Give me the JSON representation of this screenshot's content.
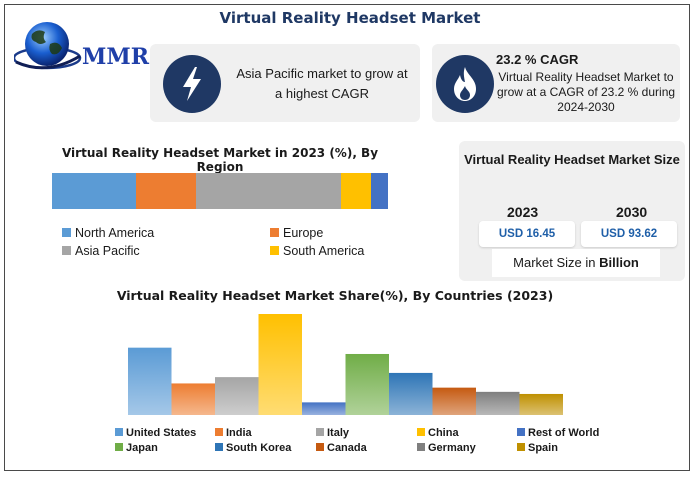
{
  "title": "Virtual Reality Headset Market",
  "logo": {
    "text": "MMR"
  },
  "card_ap": {
    "icon": "lightning-icon",
    "text": "Asia Pacific market to grow at a highest CAGR"
  },
  "card_cagr": {
    "icon": "flame-icon",
    "heading": "23.2 % CAGR",
    "text": "Virtual Reality Headset Market to grow at a CAGR of 23.2 % during 2024-2030"
  },
  "market_size": {
    "title": "Virtual Reality Headset Market Size",
    "year_a": "2023",
    "value_a": "USD 16.45",
    "year_b": "2030",
    "value_b": "USD 93.62",
    "footer_prefix": "Market Size in ",
    "footer_bold": "Billion"
  },
  "colors": {
    "title": "#1f3864",
    "accent_dark": "#1f3864",
    "value_text": "#1f5fa8"
  },
  "chart_data": [
    {
      "type": "bar",
      "orientation": "horizontal-stacked",
      "title": "Virtual Reality Headset Market in 2023 (%), By Region",
      "series": [
        {
          "name": "North America",
          "value": 25,
          "color": "#5b9bd5"
        },
        {
          "name": "Europe",
          "value": 18,
          "color": "#ed7d31"
        },
        {
          "name": "Asia Pacific",
          "value": 43,
          "color": "#a5a5a5"
        },
        {
          "name": "South America",
          "value": 9,
          "color": "#ffc000"
        },
        {
          "name": "",
          "value": 5,
          "color": "#4472c4"
        }
      ],
      "legend": [
        "North America",
        "Europe",
        "Asia Pacific",
        "South America"
      ],
      "legend_placement": "bottom"
    },
    {
      "type": "bar",
      "title": "Virtual Reality Headset Market Share(%), By Countries (2023)",
      "categories": [
        "United States",
        "India",
        "Italy",
        "China",
        "Rest of World",
        "Japan",
        "South Korea",
        "Canada",
        "Germany",
        "Spain"
      ],
      "values": [
        16,
        7.5,
        9,
        24,
        3,
        14.5,
        10,
        6.5,
        5.5,
        5
      ],
      "colors": [
        "#5b9bd5",
        "#ed7d31",
        "#a5a5a5",
        "#ffc000",
        "#4472c4",
        "#70ad47",
        "#2e75b6",
        "#c55a11",
        "#7f7f7f",
        "#bf9000"
      ],
      "ylim": [
        0,
        24
      ],
      "grid": false,
      "legend_placement": "bottom"
    }
  ]
}
